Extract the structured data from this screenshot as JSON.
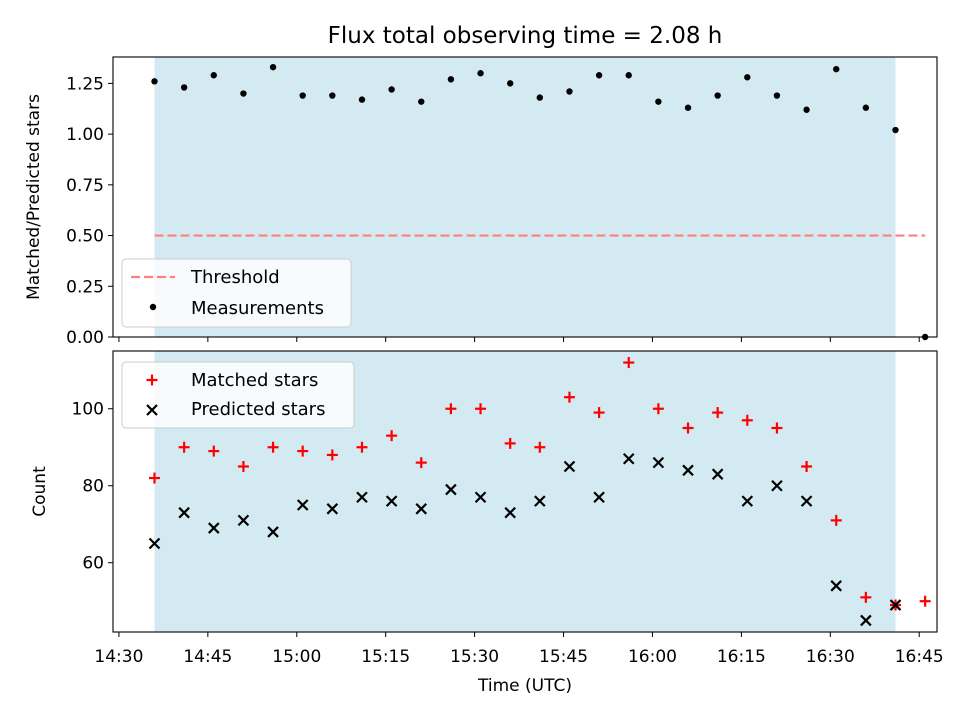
{
  "chart_data": [
    {
      "type": "scatter",
      "title": "Flux total observing time = 2.08 h",
      "ylabel": "Matched/Predicted stars",
      "xlabel": "",
      "xlim": [
        "14:29",
        "16:48"
      ],
      "ylim": [
        0,
        1.38
      ],
      "yticks": [
        0.0,
        0.25,
        0.5,
        0.75,
        1.0,
        1.25
      ],
      "ytick_labels": [
        "0.00",
        "0.25",
        "0.50",
        "0.75",
        "1.00",
        "1.25"
      ],
      "shaded_region": {
        "start": "14:36",
        "end": "16:41",
        "color": "#add8e6"
      },
      "threshold": {
        "name": "Threshold",
        "value": 0.5,
        "start": "14:36",
        "end": "16:46",
        "color": "#ff7f7f",
        "style": "dashed"
      },
      "series": [
        {
          "name": "Measurements",
          "color": "#000000",
          "marker": "dot",
          "x": [
            "14:36",
            "14:41",
            "14:46",
            "14:51",
            "14:56",
            "15:01",
            "15:06",
            "15:11",
            "15:16",
            "15:21",
            "15:26",
            "15:31",
            "15:36",
            "15:41",
            "15:46",
            "15:51",
            "15:56",
            "16:01",
            "16:06",
            "16:11",
            "16:16",
            "16:21",
            "16:26",
            "16:31",
            "16:36",
            "16:41",
            "16:46"
          ],
          "y": [
            1.26,
            1.23,
            1.29,
            1.2,
            1.33,
            1.19,
            1.19,
            1.17,
            1.22,
            1.16,
            1.27,
            1.3,
            1.25,
            1.18,
            1.21,
            1.29,
            1.29,
            1.16,
            1.13,
            1.19,
            1.28,
            1.19,
            1.12,
            1.32,
            1.13,
            1.02,
            0.0
          ]
        }
      ],
      "legend": {
        "position": "lower-left",
        "entries": [
          "Threshold",
          "Measurements"
        ]
      }
    },
    {
      "type": "scatter",
      "title": "",
      "ylabel": "Count",
      "xlabel": "Time (UTC)",
      "xlim": [
        "14:29",
        "16:48"
      ],
      "ylim": [
        42,
        115
      ],
      "yticks": [
        60,
        80,
        100
      ],
      "ytick_labels": [
        "60",
        "80",
        "100"
      ],
      "xticks": [
        "14:30",
        "14:45",
        "15:00",
        "15:15",
        "15:30",
        "15:45",
        "16:00",
        "16:15",
        "16:30",
        "16:45"
      ],
      "xtick_labels": [
        "14:30",
        "14:45",
        "15:00",
        "15:15",
        "15:30",
        "15:45",
        "16:00",
        "16:15",
        "16:30",
        "16:45"
      ],
      "shaded_region": {
        "start": "14:36",
        "end": "16:41",
        "color": "#add8e6"
      },
      "series": [
        {
          "name": "Matched stars",
          "color": "#ff0000",
          "marker": "plus",
          "x": [
            "14:36",
            "14:41",
            "14:46",
            "14:51",
            "14:56",
            "15:01",
            "15:06",
            "15:11",
            "15:16",
            "15:21",
            "15:26",
            "15:31",
            "15:36",
            "15:41",
            "15:46",
            "15:51",
            "15:56",
            "16:01",
            "16:06",
            "16:11",
            "16:16",
            "16:21",
            "16:26",
            "16:31",
            "16:36",
            "16:41",
            "16:46"
          ],
          "y": [
            82,
            90,
            89,
            85,
            90,
            89,
            88,
            90,
            93,
            86,
            100,
            100,
            91,
            90,
            103,
            99,
            112,
            100,
            95,
            99,
            97,
            95,
            85,
            71,
            51,
            49,
            50
          ]
        },
        {
          "name": "Predicted stars",
          "color": "#000000",
          "marker": "x",
          "x": [
            "14:36",
            "14:41",
            "14:46",
            "14:51",
            "14:56",
            "15:01",
            "15:06",
            "15:11",
            "15:16",
            "15:21",
            "15:26",
            "15:31",
            "15:36",
            "15:41",
            "15:46",
            "15:51",
            "15:56",
            "16:01",
            "16:06",
            "16:11",
            "16:16",
            "16:21",
            "16:26",
            "16:31",
            "16:36",
            "16:41"
          ],
          "y": [
            65,
            73,
            69,
            71,
            68,
            75,
            74,
            77,
            76,
            74,
            79,
            77,
            73,
            76,
            85,
            77,
            87,
            86,
            84,
            83,
            76,
            80,
            76,
            54,
            45,
            49
          ]
        }
      ],
      "legend": {
        "position": "top-left",
        "entries": [
          "Matched stars",
          "Predicted stars"
        ]
      }
    }
  ]
}
